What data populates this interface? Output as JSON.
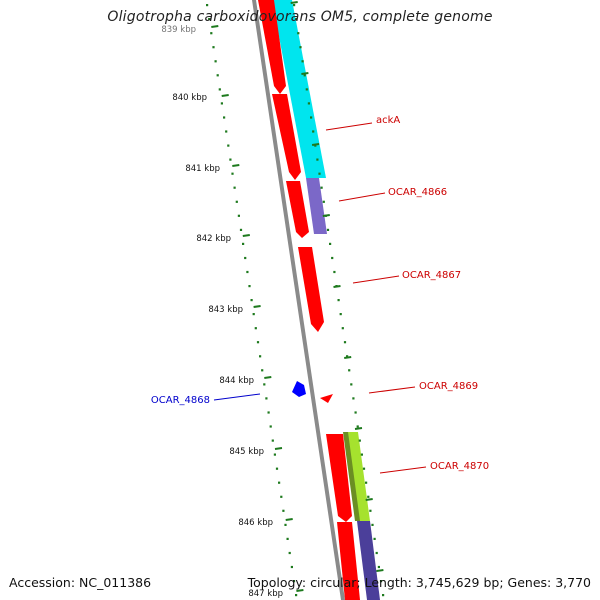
{
  "title": "Oligotropha carboxidovorans OM5, complete genome",
  "accession": "Accession: NC_011386",
  "summary": "Topology: circular; Length: 3,745,629 bp; Genes: 3,770",
  "scale_labels": [
    "839 kbp",
    "840 kbp",
    "841 kbp",
    "842 kbp",
    "843 kbp",
    "844 kbp",
    "845 kbp",
    "846 kbp",
    "847 kbp"
  ],
  "gene_labels": [
    {
      "name": "ackA",
      "color": "#cc0000"
    },
    {
      "name": "OCAR_4866",
      "color": "#cc0000"
    },
    {
      "name": "OCAR_4867",
      "color": "#cc0000"
    },
    {
      "name": "OCAR_4869",
      "color": "#cc0000"
    },
    {
      "name": "OCAR_4870",
      "color": "#cc0000"
    },
    {
      "name": "OCAR_4868",
      "color": "#0000cc"
    }
  ],
  "colors": {
    "backbone": "#888888",
    "tick": "#1e7a1e",
    "cds": "#ff0000",
    "gene_other_strand": "#0000ff",
    "cog_cyan": "#00e5ee",
    "cog_purple": "#7b68c8",
    "cog_lime": "#a6e22e",
    "cog_navy": "#4b3f9a"
  }
}
